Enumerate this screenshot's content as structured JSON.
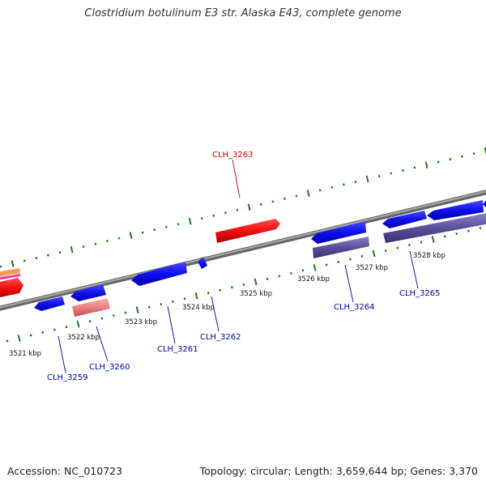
{
  "header": {
    "title": "Clostridium botulinum E3 str. Alaska E43, complete genome"
  },
  "footer": {
    "accession": "Accession: NC_010723",
    "summary": "Topology: circular; Length: 3,659,644 bp; Genes: 3,370"
  },
  "colors": {
    "backbone": "#888888",
    "tick": "#1e7a1e",
    "gene_forward": "#e01010",
    "gene_reverse": "#1010ee",
    "gene_reverse_light": "#6a5fa8",
    "gene_pseudo": "#ee8888",
    "label_highlight": "#cc0000",
    "label_normal": "#0000aa"
  },
  "map": {
    "scale_labels": [
      "3521 kbp",
      "3522 kbp",
      "3523 kbp",
      "3524 kbp",
      "3525 kbp",
      "3526 kbp",
      "3527 kbp",
      "3528 kbp"
    ],
    "gene_labels": [
      {
        "id": "CLH_3259",
        "highlight": false
      },
      {
        "id": "CLH_3260",
        "highlight": false
      },
      {
        "id": "CLH_3261",
        "highlight": false
      },
      {
        "id": "CLH_3262",
        "highlight": false
      },
      {
        "id": "CLH_3263",
        "highlight": true
      },
      {
        "id": "CLH_3264",
        "highlight": false
      },
      {
        "id": "CLH_3265",
        "highlight": false
      }
    ]
  }
}
